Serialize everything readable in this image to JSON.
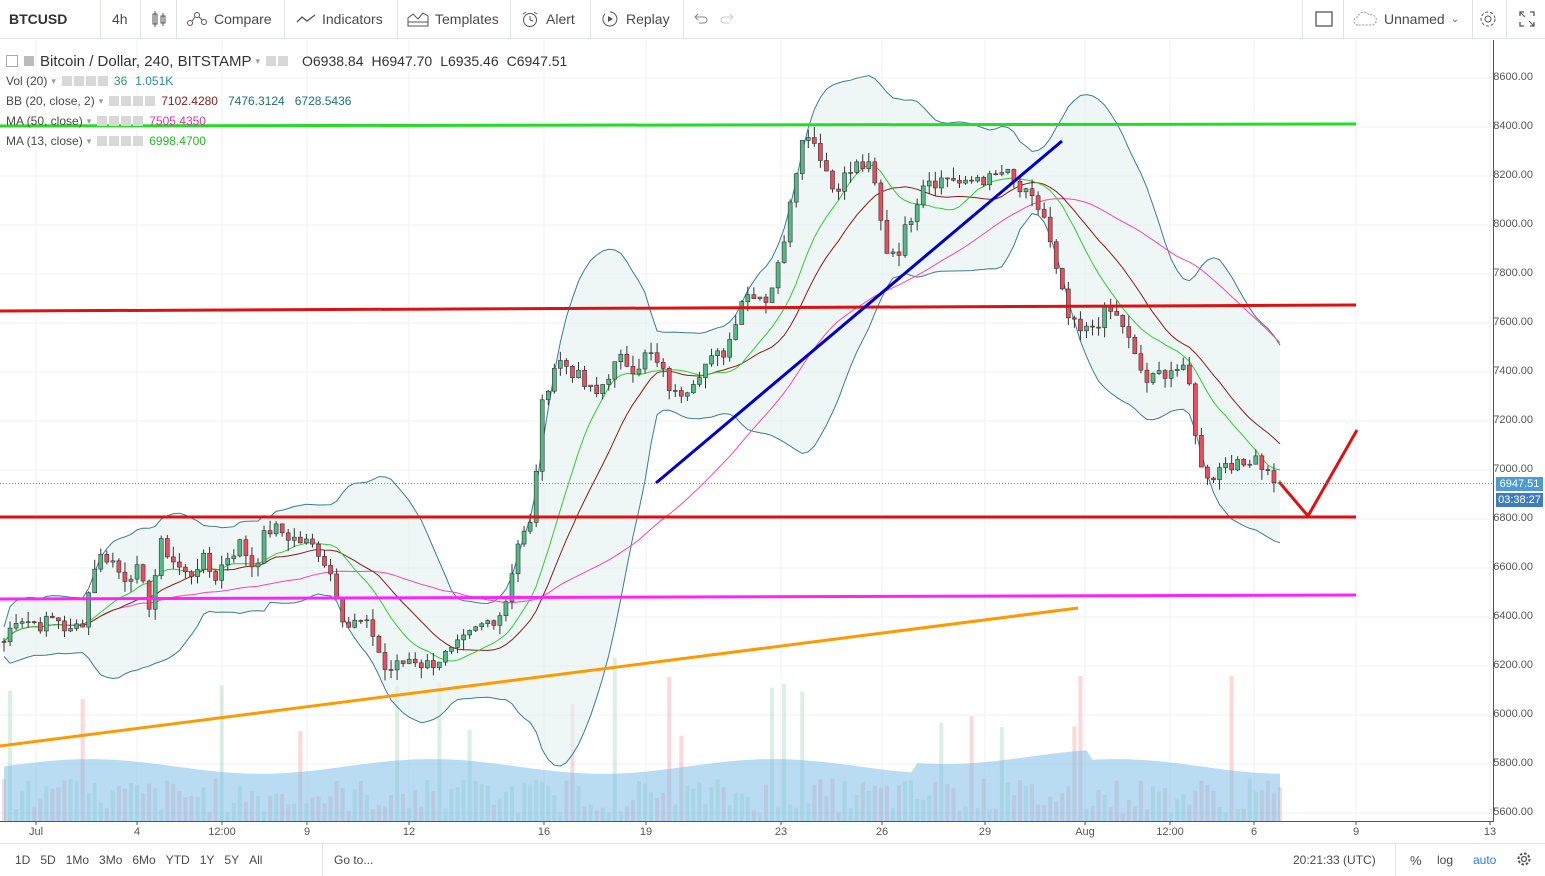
{
  "toolbar": {
    "symbol": "BTCUSD",
    "interval": "4h",
    "compare": "Compare",
    "indicators": "Indicators",
    "templates": "Templates",
    "alert": "Alert",
    "replay": "Replay",
    "layout_name": "Unnamed"
  },
  "legend": {
    "title": "Bitcoin / Dollar, 240, BITSTAMP",
    "open": "O6938.84",
    "high": "H6947.70",
    "low": "L6935.46",
    "close": "C6947.51",
    "vol_label": "Vol (20)",
    "vol_v1": "36",
    "vol_v2": "1.051K",
    "bb_label": "BB (20, close, 2)",
    "bb_v1": "7102.4280",
    "bb_v2": "7476.3124",
    "bb_v3": "6728.5436",
    "ma50_label": "MA (50, close)",
    "ma50_value": "7505.4350",
    "ma13_label": "MA (13, close)",
    "ma13_value": "6998.4700"
  },
  "colors": {
    "up": "#53b987",
    "down": "#eb4d5c",
    "bb_line": "#3a7d93",
    "ma13": "#33cc33",
    "ma20": "#8b1a1a",
    "ma50": "#ff44aa",
    "green_level": "#22dd22",
    "red_level": "#dd1111",
    "magenta_level": "#ff22ff",
    "trendline_blue": "#0000cc",
    "trendline_orange": "#ff9900",
    "price_tag": "#4a9bd6",
    "timer_tag": "#3d7dbf"
  },
  "price_scale": {
    "ticks": [
      "8600.00",
      "8400.00",
      "8200.00",
      "8000.00",
      "7800.00",
      "7600.00",
      "7400.00",
      "7200.00",
      "7000.00",
      "6800.00",
      "6600.00",
      "6400.00",
      "6200.00",
      "6000.00",
      "5800.00",
      "5600.00"
    ],
    "last_price": "6947.51",
    "countdown": "03:38:27"
  },
  "time_scale": {
    "ticks": [
      "Jul",
      "4",
      "12:00",
      "9",
      "12",
      "16",
      "19",
      "23",
      "26",
      "29",
      "Aug",
      "12:00",
      "6",
      "9",
      "13"
    ]
  },
  "chart_data": {
    "type": "candlestick",
    "symbol": "Bitcoin / Dollar",
    "interval": "240",
    "exchange": "BITSTAMP",
    "ylim": [
      5600,
      8700
    ],
    "horizontal_levels": [
      {
        "color": "green",
        "price": 8400
      },
      {
        "color": "red",
        "price": 7660
      },
      {
        "color": "red",
        "price": 6800
      },
      {
        "color": "magenta",
        "price": 6490
      }
    ],
    "trendlines": [
      {
        "color": "blue",
        "from": {
          "date": "Jul 19",
          "price": 6950
        },
        "to": {
          "date": "Jul 31",
          "price": 8340
        }
      },
      {
        "color": "orange",
        "from": {
          "date": "Jun 30",
          "price": 5880
        },
        "to": {
          "date": "Aug 1",
          "price": 6440
        }
      }
    ],
    "projection": {
      "color": "red",
      "points": [
        6950,
        6800,
        7160
      ]
    },
    "close_path": [
      6300,
      6410,
      6380,
      6370,
      6400,
      6330,
      6390,
      6640,
      6650,
      6560,
      6600,
      6450,
      6700,
      6620,
      6560,
      6640,
      6560,
      6650,
      6700,
      6600,
      6760,
      6750,
      6720,
      6700,
      6670,
      6560,
      6360,
      6380,
      6340,
      6180,
      6200,
      6240,
      6200,
      6230,
      6250,
      6300,
      6350,
      6390,
      6430,
      6700,
      6770,
      7300,
      7450,
      7420,
      7350,
      7300,
      7400,
      7450,
      7420,
      7480,
      7400,
      7300,
      7350,
      7420,
      7450,
      7500,
      7700,
      7730,
      7700,
      7850,
      8200,
      8400,
      8300,
      8150,
      8200,
      8250,
      8220,
      7900,
      7900,
      8050,
      8200,
      8180,
      8200,
      8150,
      8200,
      8180,
      8220,
      8150,
      8100,
      8050,
      7800,
      7600,
      7550,
      7600,
      7650,
      7600,
      7450,
      7350,
      7400,
      7420,
      7380,
      7000,
      6980,
      7050,
      7000,
      7080,
      6990,
      6947
    ],
    "volume_ma_range": [
      5780,
      5850
    ]
  },
  "bottom": {
    "ranges": [
      "1D",
      "5D",
      "1Mo",
      "3Mo",
      "6Mo",
      "YTD",
      "1Y",
      "5Y",
      "All"
    ],
    "goto": "Go to...",
    "clock": "20:21:33 (UTC)",
    "percent": "%",
    "log": "log",
    "auto": "auto"
  }
}
